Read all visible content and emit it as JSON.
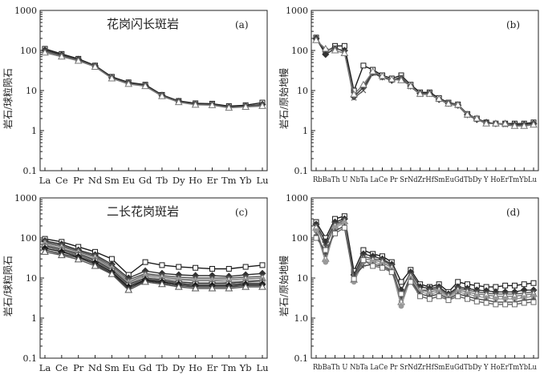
{
  "figure": {
    "background": "#ffffff"
  },
  "styles": {
    "colors": [
      "#1a1a1a",
      "#333333",
      "#555555",
      "#777777",
      "#999999",
      "#444444",
      "#666666"
    ]
  },
  "chart_data": [
    {
      "id": "a",
      "type": "line",
      "title": "花岗闪长斑岩",
      "panel_label": "(a)",
      "ylabel": "岩石/球粒陨石",
      "yscale": "log",
      "ylim": [
        0.1,
        1000
      ],
      "yticks": [
        {
          "value": 0.1,
          "label": "0.1"
        },
        {
          "value": 1,
          "label": "1"
        },
        {
          "value": 10,
          "label": "10"
        },
        {
          "value": 100,
          "label": "100"
        },
        {
          "value": 1000,
          "label": "1000"
        }
      ],
      "categories": [
        "La",
        "Ce",
        "Pr",
        "Nd",
        "Sm",
        "Eu",
        "Gd",
        "Tb",
        "Dy",
        "Ho",
        "Er",
        "Tm",
        "Yb",
        "Lu"
      ],
      "series": [
        {
          "values": [
            110,
            82,
            62,
            42,
            22,
            16,
            14,
            7.8,
            5.5,
            4.8,
            4.7,
            4.1,
            4.3,
            5.0
          ]
        },
        {
          "values": [
            102,
            78,
            60,
            41,
            21,
            15.5,
            13.5,
            7.6,
            5.4,
            4.6,
            4.5,
            3.9,
            4.1,
            4.5
          ]
        },
        {
          "values": [
            95,
            74,
            57,
            40,
            20.5,
            15,
            13,
            7.4,
            5.2,
            4.5,
            4.4,
            3.8,
            4.0,
            4.3
          ]
        },
        {
          "values": [
            88,
            70,
            55,
            39,
            20,
            14.5,
            12.8,
            7.2,
            5.1,
            4.4,
            4.3,
            3.7,
            3.9,
            4.1
          ]
        }
      ]
    },
    {
      "id": "b",
      "type": "line",
      "title": "",
      "panel_label": "(b)",
      "ylabel": "岩石/原始地幔",
      "yscale": "log",
      "ylim": [
        0.1,
        1000
      ],
      "yticks": [
        {
          "value": 0.1,
          "label": "0.1"
        },
        {
          "value": 1,
          "label": "1"
        },
        {
          "value": 10,
          "label": "10"
        },
        {
          "value": 100,
          "label": "100"
        },
        {
          "value": 1000,
          "label": "1000"
        }
      ],
      "categories": [
        "Rb",
        "Ba",
        "Th",
        "U",
        "Nb",
        "Ta",
        "La",
        "Ce",
        "Pr",
        "Sr",
        "Nd",
        "Zr",
        "Hf",
        "Sm",
        "Eu",
        "Gd",
        "Tb",
        "Dy",
        "Y",
        "Ho",
        "Er",
        "Tm",
        "Yb",
        "Lu"
      ],
      "categories_label": "RbBaTh U NbTa LaCe Pr SrNdZrHfSmEuGdTbDy Y HoErTmYbLu",
      "series": [
        {
          "values": [
            210,
            90,
            130,
            130,
            10,
            42,
            33,
            24,
            20,
            24,
            14,
            9,
            9,
            6.5,
            5.0,
            4.5,
            2.6,
            2.0,
            1.6,
            1.5,
            1.5,
            1.5,
            1.5,
            1.6
          ]
        },
        {
          "values": [
            200,
            80,
            110,
            100,
            7,
            12,
            28,
            22,
            18,
            20,
            13,
            8.5,
            8.5,
            6,
            4.8,
            4.3,
            2.5,
            1.9,
            1.6,
            1.5,
            1.5,
            1.4,
            1.4,
            1.5
          ]
        },
        {
          "values": [
            190,
            100,
            120,
            90,
            6.5,
            10,
            27,
            21,
            18,
            22,
            12.5,
            8,
            8,
            6,
            4.6,
            4.2,
            2.4,
            1.9,
            1.5,
            1.5,
            1.4,
            1.3,
            1.4,
            1.4
          ]
        },
        {
          "values": [
            180,
            110,
            100,
            85,
            8,
            14,
            30,
            23,
            19,
            18,
            13,
            8.2,
            8.2,
            6.2,
            4.7,
            4.4,
            2.5,
            2.0,
            1.5,
            1.5,
            1.5,
            1.3,
            1.3,
            1.4
          ]
        }
      ]
    },
    {
      "id": "c",
      "type": "line",
      "title": "二长花岗斑岩",
      "panel_label": "(c)",
      "ylabel": "岩石/球粒陨石",
      "yscale": "log",
      "ylim": [
        0.1,
        1000
      ],
      "yticks": [
        {
          "value": 0.1,
          "label": "0.1"
        },
        {
          "value": 1,
          "label": "1"
        },
        {
          "value": 10,
          "label": "10"
        },
        {
          "value": 100,
          "label": "100"
        },
        {
          "value": 1000,
          "label": "1000"
        }
      ],
      "categories": [
        "La",
        "Ce",
        "Pr",
        "Nd",
        "Sm",
        "Eu",
        "Gd",
        "Tb",
        "Dy",
        "Ho",
        "Er",
        "Tm",
        "Yb",
        "Lu"
      ],
      "series": [
        {
          "values": [
            95,
            80,
            60,
            45,
            30,
            12,
            25,
            21,
            19,
            18,
            17,
            17,
            19,
            21
          ]
        },
        {
          "values": [
            85,
            70,
            50,
            38,
            22,
            10,
            15,
            13,
            12,
            11.5,
            11.5,
            11,
            12,
            13
          ]
        },
        {
          "values": [
            80,
            65,
            47,
            35,
            20,
            9,
            13,
            11.5,
            10.5,
            10,
            10,
            10,
            10.5,
            11
          ]
        },
        {
          "values": [
            75,
            60,
            45,
            33,
            18,
            8,
            12,
            10.5,
            9.5,
            9,
            9,
            9,
            9.5,
            10
          ]
        },
        {
          "values": [
            70,
            55,
            42,
            30,
            17,
            7.5,
            11,
            9.5,
            9,
            8.5,
            8.5,
            8,
            8.5,
            9
          ]
        },
        {
          "values": [
            65,
            52,
            40,
            28,
            16,
            7,
            10,
            9,
            8,
            7.5,
            7.5,
            7.5,
            8,
            8.5
          ]
        },
        {
          "values": [
            60,
            48,
            37,
            26,
            15,
            6.5,
            9.5,
            8.5,
            7.5,
            7,
            7,
            7,
            7.5,
            7.5
          ]
        },
        {
          "values": [
            55,
            45,
            34,
            24,
            14,
            6,
            9,
            8,
            7,
            6.5,
            6.5,
            6.5,
            7,
            7
          ]
        },
        {
          "values": [
            50,
            40,
            32,
            22,
            13,
            5.5,
            8.5,
            7.5,
            6.5,
            6,
            6,
            6,
            6.5,
            6.5
          ]
        },
        {
          "values": [
            45,
            37,
            29,
            20,
            12.5,
            5,
            8,
            7,
            6,
            5.5,
            5.5,
            5.5,
            6,
            6
          ]
        }
      ]
    },
    {
      "id": "d",
      "type": "line",
      "title": "",
      "panel_label": "(d)",
      "ylabel": "岩石/原始地幔",
      "yscale": "log",
      "ylim": [
        0.1,
        1000
      ],
      "yticks": [
        {
          "value": 0.1,
          "label": "0.1"
        },
        {
          "value": 1,
          "label": "1.0"
        },
        {
          "value": 10,
          "label": "10"
        },
        {
          "value": 100,
          "label": "100"
        },
        {
          "value": 1000,
          "label": "1000"
        }
      ],
      "categories": [
        "Rb",
        "Ba",
        "Th",
        "U",
        "Nb",
        "Ta",
        "La",
        "Ce",
        "Pr",
        "Sr",
        "Nd",
        "Zr",
        "Hf",
        "Sm",
        "Eu",
        "Gd",
        "Tb",
        "Dy",
        "Y",
        "Ho",
        "Er",
        "Tm",
        "Yb",
        "Lu"
      ],
      "categories_label": "RbBaTh U NbTa LaCe Pr SrNdZrHfSmEuGdTbDy Y HoErTmYbLu",
      "series": [
        {
          "values": [
            250,
            100,
            300,
            350,
            15,
            50,
            40,
            35,
            25,
            8,
            16,
            7,
            6,
            7,
            4.5,
            8,
            7,
            6.5,
            6,
            6,
            6.5,
            6.5,
            7,
            7.5
          ]
        },
        {
          "values": [
            220,
            80,
            250,
            300,
            12,
            40,
            35,
            30,
            22,
            5,
            14,
            6,
            5.5,
            6,
            4,
            6,
            5.5,
            5,
            4.8,
            4.5,
            4.5,
            4.5,
            5,
            5
          ]
        },
        {
          "values": [
            200,
            60,
            220,
            280,
            10,
            35,
            30,
            28,
            20,
            3,
            12,
            5,
            5,
            5.5,
            3.8,
            5.5,
            5,
            4.5,
            4.2,
            4,
            4,
            4,
            4.2,
            4.5
          ]
        },
        {
          "values": [
            180,
            30,
            200,
            260,
            9,
            30,
            28,
            25,
            18,
            2.5,
            11,
            5,
            4.5,
            5,
            3.5,
            5,
            4.5,
            4,
            3.8,
            3.5,
            3.5,
            3.5,
            3.8,
            4
          ]
        },
        {
          "values": [
            150,
            25,
            180,
            240,
            8,
            25,
            25,
            22,
            16,
            2,
            10,
            4.5,
            4,
            4.5,
            3.2,
            4.5,
            4,
            3.5,
            3.2,
            3,
            3,
            3,
            3.2,
            3.5
          ]
        },
        {
          "values": [
            120,
            40,
            150,
            200,
            11,
            20,
            22,
            20,
            15,
            3.5,
            9,
            4,
            3.5,
            4,
            3,
            4,
            3.5,
            3,
            2.8,
            2.5,
            2.5,
            2.5,
            2.8,
            3
          ]
        },
        {
          "values": [
            100,
            50,
            130,
            180,
            9.5,
            28,
            20,
            18,
            14,
            4,
            8,
            3.5,
            3,
            3.5,
            2.8,
            3.5,
            3,
            2.6,
            2.4,
            2.2,
            2.2,
            2.2,
            2.4,
            2.5
          ]
        }
      ]
    }
  ]
}
